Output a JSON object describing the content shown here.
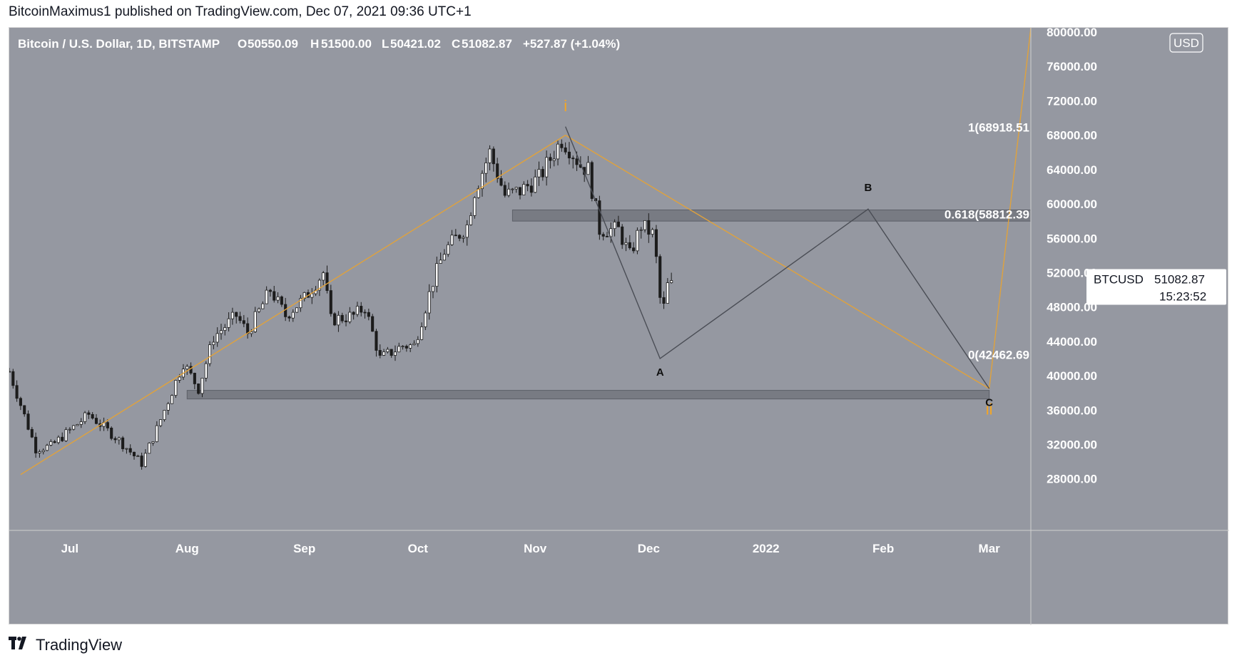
{
  "publisher_line": "BitcoinMaximus1 published on TradingView.com, Dec 07, 2021 09:36 UTC+1",
  "footer": {
    "brand": "TradingView",
    "logo_icon": "tradingview-logo-icon"
  },
  "colors": {
    "background": "#9598a1",
    "candle": "#1c1c1c",
    "wave_line": "#e0a23c",
    "abc_line": "#4a4d55",
    "zone": "#6f727a",
    "label_white": "#ffffff",
    "label_orange": "#f5a623"
  },
  "chart_data": {
    "type": "candlestick",
    "title": "Bitcoin / U.S. Dollar, 1D, BITSTAMP",
    "ohlc_header": {
      "open_label": "O",
      "open": "50550.09",
      "high_label": "H",
      "high": "51500.00",
      "low_label": "L",
      "low": "50421.02",
      "close_label": "C",
      "close": "51082.87",
      "change": "+527.87 (+1.04%)"
    },
    "currency_badge": "USD",
    "x_axis": {
      "start": "2021-06-15",
      "end": "2022-03-12",
      "ticks": [
        {
          "date": "2021-07-01",
          "label": "Jul"
        },
        {
          "date": "2021-08-01",
          "label": "Aug"
        },
        {
          "date": "2021-09-01",
          "label": "Sep"
        },
        {
          "date": "2021-10-01",
          "label": "Oct"
        },
        {
          "date": "2021-11-01",
          "label": "Nov"
        },
        {
          "date": "2021-12-01",
          "label": "Dec"
        },
        {
          "date": "2022-01-01",
          "label": "2022"
        },
        {
          "date": "2022-02-01",
          "label": "Feb"
        },
        {
          "date": "2022-03-01",
          "label": "Mar"
        }
      ]
    },
    "y_axis": {
      "range": [
        22000,
        80500
      ],
      "ticks": [
        {
          "value": 80000,
          "label": "80000.00"
        },
        {
          "value": 76000,
          "label": "76000.00"
        },
        {
          "value": 72000,
          "label": "72000.00"
        },
        {
          "value": 68000,
          "label": "68000.00"
        },
        {
          "value": 64000,
          "label": "64000.00"
        },
        {
          "value": 60000,
          "label": "60000.00"
        },
        {
          "value": 56000,
          "label": "56000.00"
        },
        {
          "value": 52000,
          "label": "52000.00"
        },
        {
          "value": 48000,
          "label": "48000.00"
        },
        {
          "value": 44000,
          "label": "44000.00"
        },
        {
          "value": 40000,
          "label": "40000.00"
        },
        {
          "value": 36000,
          "label": "36000.00"
        },
        {
          "value": 32000,
          "label": "32000.00"
        },
        {
          "value": 28000,
          "label": "28000.00"
        }
      ]
    },
    "price_label": {
      "symbol": "BTCUSD",
      "price": "51082.87",
      "countdown": "15:23:52",
      "value": 51082.87
    },
    "price_path": [
      [
        "2021-06-15",
        40500
      ],
      [
        "2021-06-22",
        31500
      ],
      [
        "2021-06-26",
        31800
      ],
      [
        "2021-07-06",
        35500
      ],
      [
        "2021-07-14",
        32500
      ],
      [
        "2021-07-20",
        29800
      ],
      [
        "2021-07-24",
        33800
      ],
      [
        "2021-07-31",
        41500
      ],
      [
        "2021-08-04",
        38500
      ],
      [
        "2021-08-08",
        44500
      ],
      [
        "2021-08-14",
        47000
      ],
      [
        "2021-08-17",
        45000
      ],
      [
        "2021-08-23",
        50000
      ],
      [
        "2021-08-27",
        47000
      ],
      [
        "2021-09-01",
        49000
      ],
      [
        "2021-09-06",
        52000
      ],
      [
        "2021-09-08",
        46500
      ],
      [
        "2021-09-14",
        47000
      ],
      [
        "2021-09-17",
        48000
      ],
      [
        "2021-09-21",
        42000
      ],
      [
        "2021-09-27",
        43500
      ],
      [
        "2021-09-30",
        43500
      ],
      [
        "2021-10-05",
        51000
      ],
      [
        "2021-10-08",
        54500
      ],
      [
        "2021-10-14",
        57500
      ],
      [
        "2021-10-16",
        61500
      ],
      [
        "2021-10-20",
        66000
      ],
      [
        "2021-10-24",
        61000
      ],
      [
        "2021-10-28",
        61500
      ],
      [
        "2021-11-02",
        63000
      ],
      [
        "2021-11-08",
        67500
      ],
      [
        "2021-11-10",
        66500
      ],
      [
        "2021-11-13",
        64500
      ],
      [
        "2021-11-15",
        64000
      ],
      [
        "2021-11-18",
        57000
      ],
      [
        "2021-11-23",
        57000
      ],
      [
        "2021-11-26",
        54000
      ],
      [
        "2021-11-29",
        57500
      ],
      [
        "2021-12-02",
        56500
      ],
      [
        "2021-12-03",
        53500
      ],
      [
        "2021-12-04",
        49000
      ],
      [
        "2021-12-05",
        48000
      ],
      [
        "2021-12-06",
        50500
      ],
      [
        "2021-12-07",
        51083
      ]
    ],
    "wave_lines": [
      {
        "from": [
          "2021-06-18",
          28500
        ],
        "to": [
          "2021-11-09",
          68000
        ]
      },
      {
        "from": [
          "2021-11-09",
          68000
        ],
        "to": [
          "2022-03-01",
          38500
        ]
      },
      {
        "from": [
          "2022-03-01",
          38500
        ],
        "to": [
          "2022-03-12",
          80500
        ]
      }
    ],
    "abc_path": [
      [
        "2021-11-09",
        69000
      ],
      [
        "2021-12-04",
        42000
      ],
      [
        "2022-01-28",
        59400
      ],
      [
        "2022-03-01",
        38500
      ]
    ],
    "zones": [
      {
        "x_start": "2021-10-26",
        "x_end": "2022-03-12",
        "y_low": 58000,
        "y_high": 59300
      },
      {
        "x_start": "2021-08-01",
        "x_end": "2022-03-01",
        "y_low": 37300,
        "y_high": 38300
      }
    ],
    "fib_labels": [
      {
        "label": "1(68918.51",
        "value": 68918.51
      },
      {
        "label": "0.618(58812.39",
        "value": 58812.39
      },
      {
        "label": "0(42462.69",
        "value": 42462.69
      }
    ],
    "wave_labels": [
      {
        "text": "i",
        "date": "2021-11-09",
        "value": 70800,
        "color": "orange"
      },
      {
        "text": "ii",
        "date": "2022-03-01",
        "value": 35500,
        "color": "orange"
      },
      {
        "text": "A",
        "date": "2021-12-04",
        "value": 40000,
        "color": "black"
      },
      {
        "text": "B",
        "date": "2022-01-28",
        "value": 61500,
        "color": "black"
      },
      {
        "text": "C",
        "date": "2022-03-01",
        "value": 36500,
        "color": "black"
      }
    ]
  }
}
